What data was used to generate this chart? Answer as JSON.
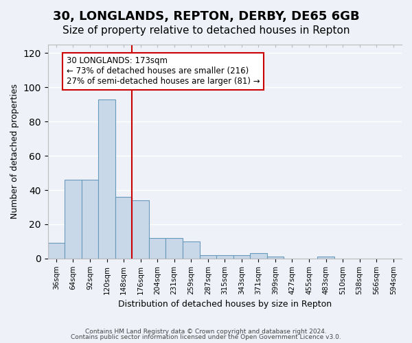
{
  "title1": "30, LONGLANDS, REPTON, DERBY, DE65 6GB",
  "title2": "Size of property relative to detached houses in Repton",
  "xlabel": "Distribution of detached houses by size in Repton",
  "ylabel": "Number of detached properties",
  "bins": [
    "36sqm",
    "64sqm",
    "92sqm",
    "120sqm",
    "148sqm",
    "176sqm",
    "204sqm",
    "231sqm",
    "259sqm",
    "287sqm",
    "315sqm",
    "343sqm",
    "371sqm",
    "399sqm",
    "427sqm",
    "455sqm",
    "483sqm",
    "510sqm",
    "538sqm",
    "566sqm",
    "594sqm"
  ],
  "values": [
    9,
    46,
    46,
    93,
    36,
    34,
    12,
    12,
    10,
    2,
    2,
    2,
    3,
    1,
    0,
    0,
    1,
    0,
    0,
    0,
    0
  ],
  "bar_color": "#c8d8e8",
  "bar_edge_color": "#6699bb",
  "property_line_color": "#cc0000",
  "annotation_text": "30 LONGLANDS: 173sqm\n← 73% of detached houses are smaller (216)\n27% of semi-detached houses are larger (81) →",
  "annotation_box_color": "white",
  "annotation_box_edge_color": "#cc0000",
  "ylim": [
    0,
    125
  ],
  "yticks": [
    0,
    20,
    40,
    60,
    80,
    100,
    120
  ],
  "footer1": "Contains HM Land Registry data © Crown copyright and database right 2024.",
  "footer2": "Contains public sector information licensed under the Open Government Licence v3.0.",
  "bg_color": "#eef2f8",
  "grid_color": "#ffffff",
  "title1_fontsize": 13,
  "title2_fontsize": 11
}
